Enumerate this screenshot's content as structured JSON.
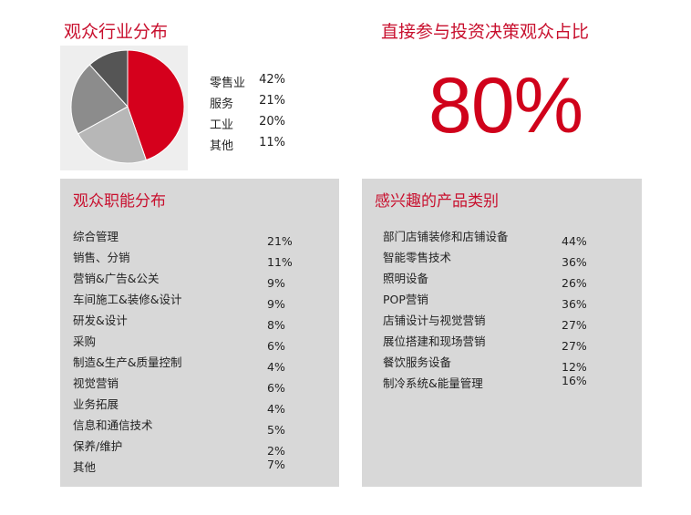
{
  "industry": {
    "title": "观众行业分布",
    "items": [
      {
        "label": "零售业",
        "value": "42%"
      },
      {
        "label": "服务",
        "value": "21%"
      },
      {
        "label": "工业",
        "value": "20%"
      },
      {
        "label": "其他",
        "value": "11%"
      }
    ]
  },
  "direct": {
    "title": "直接参与投资决策观众占比",
    "value": "80%"
  },
  "functions": {
    "title": "观众职能分布",
    "items": [
      {
        "label": "综合管理",
        "value": "21%"
      },
      {
        "label": "销售、分销",
        "value": "11%"
      },
      {
        "label": "营销&广告&公关",
        "value": "9%"
      },
      {
        "label": "车间施工&装修&设计",
        "value": "9%"
      },
      {
        "label": "研发&设计",
        "value": "8%"
      },
      {
        "label": "采购",
        "value": "6%"
      },
      {
        "label": "制造&生产&质量控制",
        "value": "4%"
      },
      {
        "label": "视觉营销",
        "value": "6%"
      },
      {
        "label": "业务拓展",
        "value": "4%"
      },
      {
        "label": "信息和通信技术",
        "value": "5%"
      },
      {
        "label": "保养/维护",
        "value": "2%"
      },
      {
        "label": "其他",
        "value": "7%"
      }
    ]
  },
  "products": {
    "title": "感兴趣的产品类别",
    "items": [
      {
        "label": "部门店铺装修和店铺设备",
        "value": "44%"
      },
      {
        "label": "智能零售技术",
        "value": "36%"
      },
      {
        "label": "照明设备",
        "value": "26%"
      },
      {
        "label": "POP营销",
        "value": "36%"
      },
      {
        "label": "店铺设计与视觉营销",
        "value": "27%"
      },
      {
        "label": "展位搭建和现场营销",
        "value": "27%"
      },
      {
        "label": "餐饮服务设备",
        "value": "12%"
      },
      {
        "label": "制冷系统&能量管理",
        "value": "16%"
      }
    ]
  },
  "chart_data": {
    "type": "pie",
    "categories": [
      "零售业",
      "服务",
      "工业",
      "其他"
    ],
    "values": [
      42,
      21,
      20,
      11
    ],
    "colors": [
      "#d5001c",
      "#b7b7b7",
      "#8c8c8c",
      "#555555"
    ]
  }
}
